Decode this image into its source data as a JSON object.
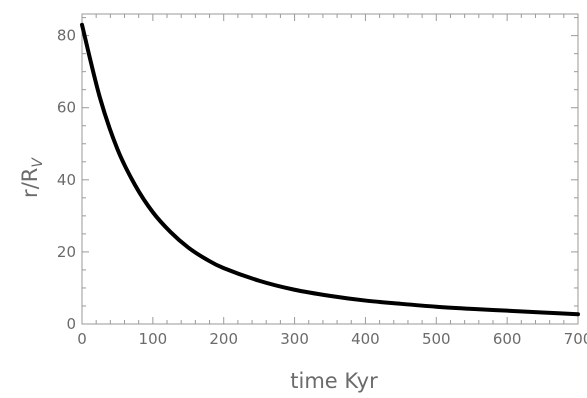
{
  "chart_data": {
    "type": "line",
    "title": "",
    "xlabel": "time  Kyr",
    "ylabel": {
      "main": "r/R",
      "subscript": "V"
    },
    "xlim": [
      0,
      700
    ],
    "ylim": [
      0,
      86
    ],
    "x_ticks": [
      0,
      100,
      200,
      300,
      400,
      500,
      600,
      700
    ],
    "x_tick_labels": [
      "0",
      "100",
      "200",
      "300",
      "400",
      "500",
      "600",
      "700"
    ],
    "y_ticks": [
      0,
      20,
      40,
      60,
      80
    ],
    "y_tick_labels": [
      "0",
      "20",
      "40",
      "60",
      "80"
    ],
    "grid": false,
    "frame": true,
    "series": [
      {
        "color": "#000000",
        "x": [
          0,
          25,
          50,
          75,
          100,
          125,
          150,
          175,
          200,
          250,
          300,
          350,
          400,
          450,
          500,
          550,
          600,
          650,
          700
        ],
        "y": [
          83,
          63,
          48.5,
          38.5,
          31,
          25.5,
          21.2,
          18.0,
          15.5,
          12.0,
          9.5,
          7.8,
          6.5,
          5.6,
          4.8,
          4.2,
          3.7,
          3.2,
          2.7
        ]
      }
    ]
  }
}
